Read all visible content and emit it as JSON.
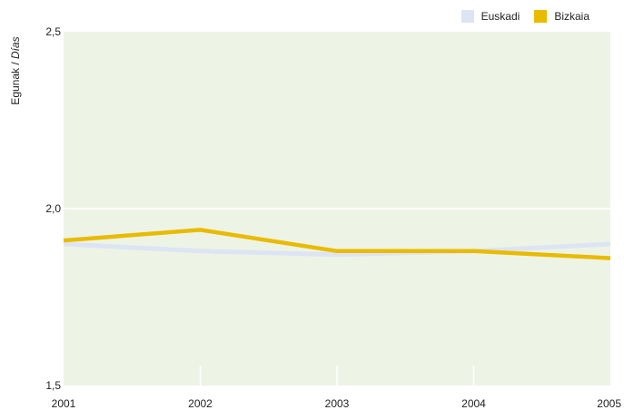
{
  "chart_data": {
    "type": "line",
    "x": [
      "2001",
      "2002",
      "2003",
      "2004",
      "2005"
    ],
    "ylim": [
      1.5,
      2.5
    ],
    "yticks": [
      "1,5",
      "2,0",
      "2,5"
    ],
    "ylabel_main": "Egunak / ",
    "ylabel_italic": "Días",
    "grid": true,
    "legend_position": "top-right",
    "plot_background": "#eef4e5",
    "series": [
      {
        "name": "Euskadi",
        "color": "#dde4f3",
        "values": [
          1.9,
          1.88,
          1.87,
          1.88,
          1.9
        ]
      },
      {
        "name": "Bizkaia",
        "color": "#e8bb00",
        "values": [
          1.91,
          1.94,
          1.88,
          1.88,
          1.86
        ]
      }
    ]
  }
}
